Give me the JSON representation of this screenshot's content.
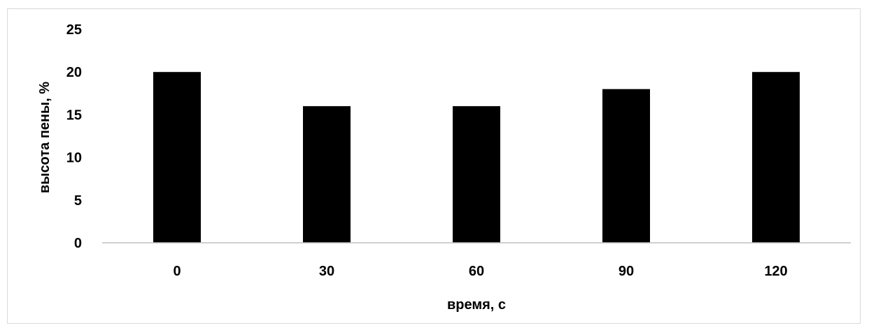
{
  "chart_data": {
    "type": "bar",
    "title": "",
    "xlabel": "время, с",
    "ylabel": "высота пены, %",
    "categories": [
      "0",
      "30",
      "60",
      "90",
      "120"
    ],
    "values": [
      20,
      16,
      16,
      18,
      20
    ],
    "ylim": [
      0,
      25
    ],
    "yticks": [
      "0",
      "5",
      "10",
      "15",
      "20",
      "25"
    ],
    "grid": false,
    "legend": "none",
    "bar_color": "#000000"
  }
}
